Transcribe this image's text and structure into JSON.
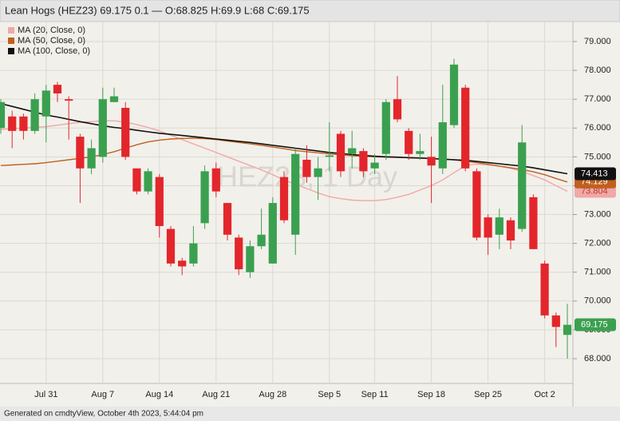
{
  "chart_data": {
    "type": "candlestick",
    "title": "Lean Hogs (HEZ23) 69.175 0.1 — O:68.825 H:69.9 L:68 C:69.175",
    "watermark": "HEZ23, 1 Day",
    "footer": "Generated on cmdtyView, October 4th 2023, 5:44:04 pm",
    "categories": [
      null,
      null,
      null,
      null,
      "Jul 31",
      null,
      null,
      null,
      null,
      "Aug 7",
      null,
      null,
      null,
      null,
      "Aug 14",
      null,
      null,
      null,
      null,
      "Aug 21",
      null,
      null,
      null,
      null,
      "Aug 28",
      null,
      null,
      null,
      null,
      "Sep 5",
      null,
      null,
      null,
      "Sep 11",
      null,
      null,
      null,
      null,
      "Sep 18",
      null,
      null,
      null,
      null,
      "Sep 25",
      null,
      null,
      null,
      null,
      "Oct 2",
      null,
      null
    ],
    "open": [
      76.0,
      76.4,
      76.4,
      75.9,
      76.4,
      77.5,
      77.0,
      75.7,
      74.6,
      75.0,
      76.9,
      76.7,
      74.6,
      73.8,
      74.3,
      72.5,
      71.4,
      71.3,
      72.7,
      74.6,
      73.4,
      72.2,
      71.0,
      71.9,
      71.3,
      74.3,
      72.3,
      74.9,
      74.3,
      75.0,
      75.8,
      75.1,
      75.2,
      74.6,
      75.1,
      77.0,
      75.9,
      75.1,
      75.0,
      74.6,
      76.1,
      77.4,
      74.5,
      72.9,
      72.3,
      72.8,
      72.5,
      73.6,
      71.3,
      69.5,
      68.825
    ],
    "high": [
      77.0,
      76.6,
      76.5,
      77.2,
      77.5,
      77.6,
      77.1,
      75.8,
      75.6,
      77.4,
      77.4,
      76.9,
      74.6,
      74.6,
      74.4,
      72.6,
      71.5,
      72.6,
      74.7,
      74.8,
      73.4,
      72.3,
      72.1,
      73.2,
      73.6,
      74.5,
      75.3,
      75.4,
      75.0,
      76.2,
      75.9,
      75.9,
      75.3,
      75.1,
      77.0,
      77.8,
      76.0,
      75.8,
      75.7,
      77.5,
      78.4,
      77.5,
      74.6,
      73.0,
      73.2,
      72.9,
      76.1,
      73.7,
      71.4,
      69.6,
      69.9
    ],
    "low": [
      75.8,
      75.3,
      75.6,
      75.8,
      75.5,
      76.9,
      75.6,
      73.4,
      74.4,
      74.8,
      76.9,
      74.9,
      73.7,
      73.7,
      72.2,
      71.2,
      70.9,
      71.2,
      72.5,
      73.6,
      72.1,
      70.9,
      70.8,
      71.8,
      71.3,
      72.7,
      71.6,
      74.1,
      73.5,
      74.5,
      74.3,
      74.6,
      74.3,
      74.4,
      74.9,
      76.2,
      74.9,
      74.9,
      73.4,
      74.4,
      76.0,
      74.5,
      72.1,
      71.6,
      71.8,
      71.8,
      72.4,
      71.8,
      69.4,
      68.4,
      68
    ],
    "close": [
      76.9,
      75.9,
      75.9,
      77.0,
      77.3,
      77.2,
      76.95,
      74.6,
      75.3,
      77.0,
      77.1,
      75.0,
      73.8,
      74.5,
      72.6,
      71.3,
      71.2,
      72.0,
      74.5,
      73.8,
      72.3,
      71.1,
      71.9,
      72.3,
      73.4,
      72.8,
      75.1,
      74.3,
      74.6,
      75.05,
      74.5,
      75.3,
      74.5,
      74.8,
      76.9,
      76.3,
      75.1,
      75.2,
      74.7,
      76.2,
      78.2,
      74.6,
      72.2,
      72.2,
      72.9,
      72.1,
      75.5,
      71.8,
      69.5,
      69.1,
      69.175
    ],
    "close_labels": [
      null,
      null,
      null,
      null,
      null,
      null,
      null,
      null,
      null,
      null,
      null,
      null,
      null,
      null,
      null,
      null,
      null,
      null,
      null,
      null,
      null,
      null,
      null,
      null,
      null,
      null,
      null,
      null,
      null,
      null,
      null,
      null,
      null,
      null,
      null,
      null,
      null,
      null,
      null,
      null,
      null,
      null,
      null,
      null,
      null,
      null,
      null,
      null,
      null,
      null,
      "69.175"
    ],
    "up_color": "#3aa04f",
    "down_color": "#e3262b",
    "series": [
      {
        "name": "MA (20, Close, 0)",
        "color": "#f0a8a8",
        "values": [
          75.95,
          75.98,
          76.0,
          76.02,
          76.05,
          76.1,
          76.15,
          76.2,
          76.22,
          76.25,
          76.25,
          76.2,
          76.12,
          76.02,
          75.9,
          75.75,
          75.6,
          75.45,
          75.3,
          75.15,
          75.0,
          74.85,
          74.7,
          74.55,
          74.38,
          74.2,
          74.05,
          73.9,
          73.75,
          73.62,
          73.55,
          73.5,
          73.48,
          73.48,
          73.52,
          73.6,
          73.7,
          73.85,
          74.0,
          74.2,
          74.45,
          74.7,
          74.75,
          74.72,
          74.68,
          74.6,
          74.5,
          74.35,
          74.2,
          74.0,
          73.804
        ],
        "value_labels": [
          null,
          null,
          null,
          null,
          null,
          null,
          null,
          null,
          null,
          null,
          null,
          null,
          null,
          null,
          null,
          null,
          null,
          null,
          null,
          null,
          null,
          null,
          null,
          null,
          null,
          null,
          null,
          null,
          null,
          null,
          null,
          null,
          null,
          null,
          null,
          null,
          null,
          null,
          null,
          null,
          null,
          null,
          null,
          null,
          null,
          null,
          null,
          null,
          null,
          null,
          "73.804"
        ]
      },
      {
        "name": "MA (50, Close, 0)",
        "color": "#c0601e",
        "values": [
          74.7,
          74.72,
          74.74,
          74.76,
          74.8,
          74.85,
          74.9,
          74.95,
          75.0,
          75.08,
          75.18,
          75.3,
          75.42,
          75.52,
          75.58,
          75.62,
          75.64,
          75.65,
          75.63,
          75.6,
          75.55,
          75.5,
          75.45,
          75.4,
          75.34,
          75.28,
          75.22,
          75.18,
          75.14,
          75.1,
          75.07,
          75.04,
          75.02,
          75.0,
          74.99,
          74.98,
          74.97,
          74.96,
          74.94,
          74.92,
          74.9,
          74.85,
          74.8,
          74.74,
          74.68,
          74.62,
          74.56,
          74.48,
          74.38,
          74.25,
          74.129
        ],
        "value_labels": [
          null,
          null,
          null,
          null,
          null,
          null,
          null,
          null,
          null,
          null,
          null,
          null,
          null,
          null,
          null,
          null,
          null,
          null,
          null,
          null,
          null,
          null,
          null,
          null,
          null,
          null,
          null,
          null,
          null,
          null,
          null,
          null,
          null,
          null,
          null,
          null,
          null,
          null,
          null,
          null,
          null,
          null,
          null,
          null,
          null,
          null,
          null,
          null,
          null,
          null,
          "74.129"
        ]
      },
      {
        "name": "MA (100, Close, 0)",
        "color": "#111111",
        "values": [
          76.85,
          76.75,
          76.65,
          76.55,
          76.45,
          76.38,
          76.3,
          76.22,
          76.15,
          76.08,
          76.02,
          75.98,
          75.92,
          75.87,
          75.82,
          75.78,
          75.74,
          75.7,
          75.66,
          75.62,
          75.58,
          75.54,
          75.5,
          75.45,
          75.4,
          75.35,
          75.3,
          75.25,
          75.2,
          75.15,
          75.12,
          75.08,
          75.05,
          75.02,
          75.0,
          74.99,
          74.97,
          74.96,
          74.94,
          74.92,
          74.9,
          74.88,
          74.84,
          74.8,
          74.76,
          74.72,
          74.68,
          74.62,
          74.55,
          74.48,
          74.413
        ],
        "value_labels": [
          null,
          null,
          null,
          null,
          null,
          null,
          null,
          null,
          null,
          null,
          null,
          null,
          null,
          null,
          null,
          null,
          null,
          null,
          null,
          null,
          null,
          null,
          null,
          null,
          null,
          null,
          null,
          null,
          null,
          null,
          null,
          null,
          null,
          null,
          null,
          null,
          null,
          null,
          null,
          null,
          null,
          null,
          null,
          null,
          null,
          null,
          null,
          null,
          null,
          null,
          "74.413"
        ]
      }
    ],
    "ylim": [
      67.14,
      79.665
    ],
    "yticks": [
      {
        "value": 68,
        "label": "68.000"
      },
      {
        "value": 69,
        "label": "69.000"
      },
      {
        "value": 70,
        "label": "70.000"
      },
      {
        "value": 71,
        "label": "71.000"
      },
      {
        "value": 72,
        "label": "72.000"
      },
      {
        "value": 73,
        "label": "73.000"
      },
      {
        "value": 74,
        "label": "74.000"
      },
      {
        "value": 75,
        "label": "75.000"
      },
      {
        "value": 76,
        "label": "76.000"
      },
      {
        "value": 77,
        "label": "77.000"
      },
      {
        "value": 78,
        "label": "78.000"
      },
      {
        "value": 79,
        "label": "79.000"
      }
    ],
    "grid": true
  }
}
